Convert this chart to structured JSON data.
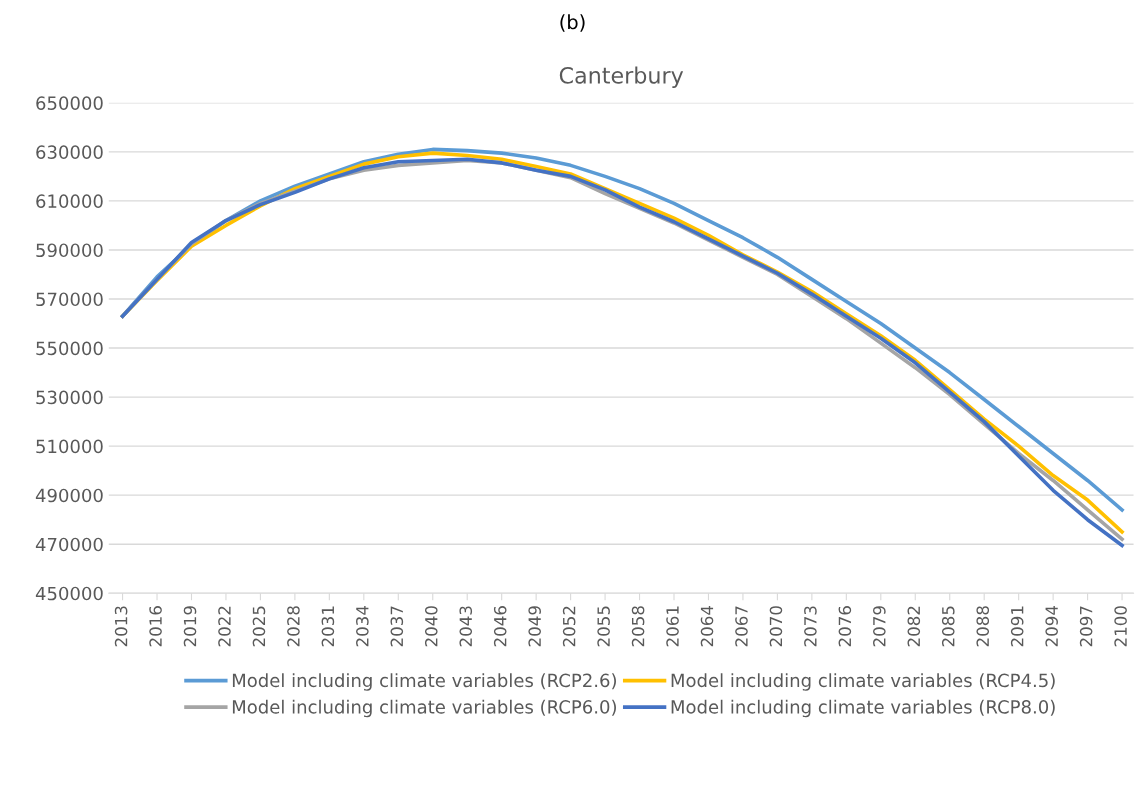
{
  "chart_data": {
    "type": "line",
    "title": "Canterbury",
    "annotations": [
      "(b)"
    ],
    "x": [
      2013,
      2016,
      2019,
      2022,
      2025,
      2028,
      2031,
      2034,
      2037,
      2040,
      2043,
      2046,
      2049,
      2052,
      2055,
      2058,
      2061,
      2064,
      2067,
      2070,
      2073,
      2076,
      2079,
      2082,
      2085,
      2088,
      2091,
      2094,
      2097,
      2100
    ],
    "series": [
      {
        "name": "Model including climate variables (RCP2.6)",
        "color": "#5b9bd5",
        "values": [
          563000,
          579000,
          592000,
          602000,
          610000,
          616000,
          621000,
          626000,
          629000,
          631000,
          630500,
          629500,
          627500,
          624500,
          620000,
          615000,
          609000,
          602000,
          595000,
          587000,
          578000,
          569000,
          560000,
          550000,
          540000,
          529000,
          518000,
          507000,
          496000,
          484000
        ]
      },
      {
        "name": "Model including climate variables (RCP4.5)",
        "color": "#ffc000",
        "values": [
          563000,
          577500,
          591500,
          600000,
          608000,
          615000,
          620000,
          625000,
          628000,
          629500,
          628500,
          627000,
          624000,
          621000,
          615000,
          609000,
          603000,
          596000,
          588000,
          581000,
          573000,
          564000,
          555000,
          545000,
          533000,
          521000,
          510000,
          498000,
          488000,
          475000
        ]
      },
      {
        "name": "Model including climate variables (RCP6.0)",
        "color": "#a5a5a5",
        "values": [
          563000,
          578000,
          592500,
          602000,
          609000,
          614000,
          619000,
          622500,
          624500,
          625500,
          626500,
          625500,
          622500,
          619500,
          613000,
          607000,
          601000,
          594000,
          587000,
          580000,
          571000,
          562000,
          552000,
          542000,
          531000,
          519000,
          507000,
          496000,
          484000,
          472000
        ]
      },
      {
        "name": "Model including climate variables (RCP8.0)",
        "color": "#4472c4",
        "values": [
          563000,
          578000,
          593000,
          602000,
          608500,
          613500,
          619000,
          623500,
          626000,
          626500,
          627000,
          625500,
          622500,
          620000,
          614500,
          607500,
          601500,
          594500,
          587500,
          580500,
          572000,
          563000,
          554000,
          544000,
          532000,
          520000,
          506000,
          492000,
          480000,
          469500
        ]
      }
    ],
    "xlim": [
      2011.8,
      2101
    ],
    "xticks": [
      2013,
      2016,
      2019,
      2022,
      2025,
      2028,
      2031,
      2034,
      2037,
      2040,
      2043,
      2046,
      2049,
      2052,
      2055,
      2058,
      2061,
      2064,
      2067,
      2070,
      2073,
      2076,
      2079,
      2082,
      2085,
      2088,
      2091,
      2094,
      2097,
      2100
    ],
    "ylim": [
      450000,
      650000
    ],
    "yticks": [
      450000,
      470000,
      490000,
      510000,
      530000,
      550000,
      570000,
      590000,
      610000,
      630000,
      650000
    ],
    "grid": "y",
    "legend": "bottom",
    "marker": "none",
    "line_style": "solid"
  }
}
